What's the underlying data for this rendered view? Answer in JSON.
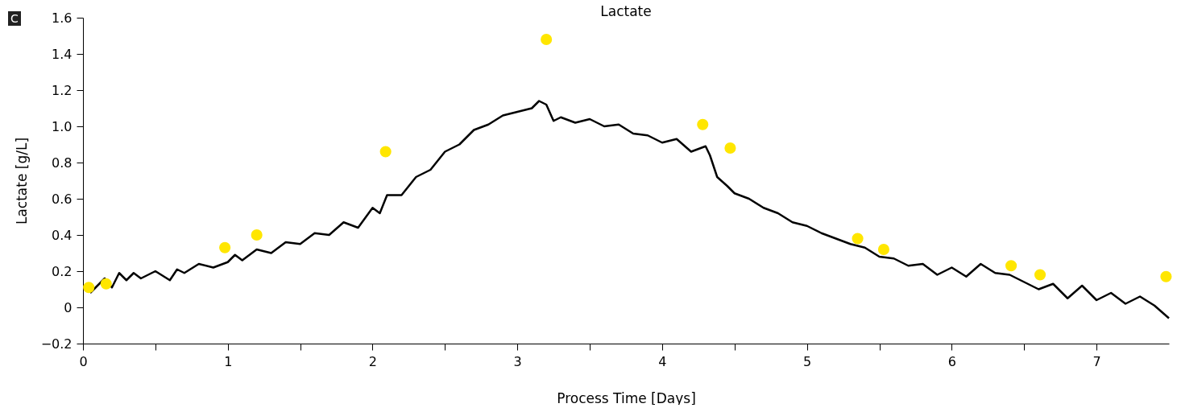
{
  "chart_data": {
    "type": "line",
    "title": "Lactate",
    "xlabel": "Process Time [Days]",
    "ylabel": "Lactate [g/L]",
    "annotations": [
      "C"
    ],
    "xlim": [
      0,
      7.5
    ],
    "xticks": [
      0,
      {
        "value": 0.5,
        "label": null
      },
      1,
      {
        "value": 1.5,
        "label": null
      },
      2,
      {
        "value": 2.5,
        "label": null
      },
      3,
      {
        "value": 3.5,
        "label": null
      },
      4,
      {
        "value": 4.5,
        "label": null
      },
      5,
      {
        "value": 5.5,
        "label": null
      },
      6,
      {
        "value": 6.5,
        "label": null
      },
      7
    ],
    "ylim": [
      -0.2,
      1.6
    ],
    "yticks": [
      {
        "value": -0.2,
        "label": "−0.2"
      },
      0,
      0.2,
      0.4,
      0.6,
      0.8,
      {
        "value": 1,
        "label": "1.0"
      },
      1.2,
      1.4,
      1.6
    ],
    "series": [
      {
        "type": "line",
        "color": "#000000",
        "line_style": "solid",
        "marker": "none",
        "x": [
          0.05,
          0.1,
          0.15,
          0.2,
          0.25,
          0.3,
          0.35,
          0.4,
          0.5,
          0.6,
          0.65,
          0.7,
          0.8,
          0.9,
          1.0,
          1.05,
          1.1,
          1.2,
          1.3,
          1.4,
          1.5,
          1.6,
          1.7,
          1.8,
          1.9,
          2.0,
          2.05,
          2.1,
          2.2,
          2.3,
          2.4,
          2.5,
          2.6,
          2.7,
          2.8,
          2.9,
          3.0,
          3.1,
          3.15,
          3.2,
          3.25,
          3.3,
          3.4,
          3.5,
          3.6,
          3.7,
          3.8,
          3.9,
          4.0,
          4.1,
          4.2,
          4.3,
          4.33,
          4.38,
          4.45,
          4.5,
          4.6,
          4.7,
          4.8,
          4.9,
          5.0,
          5.1,
          5.2,
          5.3,
          5.4,
          5.5,
          5.6,
          5.7,
          5.8,
          5.9,
          6.0,
          6.1,
          6.2,
          6.3,
          6.4,
          6.5,
          6.6,
          6.7,
          6.8,
          6.9,
          7.0,
          7.1,
          7.2,
          7.3,
          7.4,
          7.5
        ],
        "values": [
          0.08,
          0.12,
          0.16,
          0.11,
          0.19,
          0.15,
          0.19,
          0.16,
          0.2,
          0.15,
          0.21,
          0.19,
          0.24,
          0.22,
          0.25,
          0.29,
          0.26,
          0.32,
          0.3,
          0.36,
          0.35,
          0.41,
          0.4,
          0.47,
          0.44,
          0.55,
          0.52,
          0.62,
          0.62,
          0.72,
          0.76,
          0.86,
          0.9,
          0.98,
          1.01,
          1.06,
          1.08,
          1.1,
          1.14,
          1.12,
          1.03,
          1.05,
          1.02,
          1.04,
          1.0,
          1.01,
          0.96,
          0.95,
          0.91,
          0.93,
          0.86,
          0.89,
          0.84,
          0.72,
          0.67,
          0.63,
          0.6,
          0.55,
          0.52,
          0.47,
          0.45,
          0.41,
          0.38,
          0.35,
          0.33,
          0.28,
          0.27,
          0.23,
          0.24,
          0.18,
          0.22,
          0.17,
          0.24,
          0.19,
          0.18,
          0.14,
          0.1,
          0.13,
          0.05,
          0.12,
          0.04,
          0.08,
          0.02,
          0.06,
          0.01,
          -0.06
        ]
      },
      {
        "type": "scatter",
        "color": "#ffe600",
        "marker": "circle",
        "x": [
          0.04,
          0.16,
          0.98,
          1.2,
          2.09,
          3.2,
          4.28,
          4.47,
          5.35,
          5.53,
          6.41,
          6.61,
          7.48
        ],
        "values": [
          0.11,
          0.13,
          0.33,
          0.4,
          0.86,
          1.48,
          1.01,
          0.88,
          0.38,
          0.32,
          0.23,
          0.18,
          0.17
        ]
      }
    ]
  }
}
